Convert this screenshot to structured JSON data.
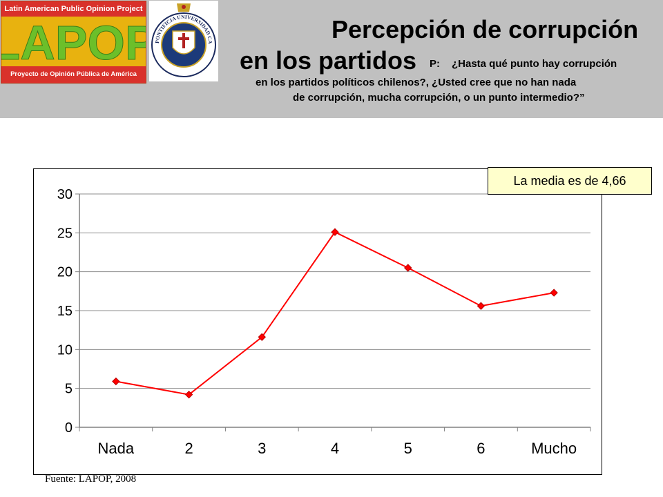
{
  "header": {
    "lapop_logo": {
      "top_text": "Latin American Public Opinion Project",
      "letters": "LAPOP",
      "bottom_text": "Proyecto de Opinión Pública de América Latina"
    },
    "seal_text": "PONTIFICIA UNIVERSIDAD CATOLICA DE CHILE",
    "title_line1": "Percepción de corrupción",
    "title_line2": "en los partidos",
    "question_prefix": "P:",
    "question_line1": "¿Hasta qué punto hay corrupción",
    "question_line2": "en los partidos políticos chilenos?, ¿Usted cree que no han nada",
    "question_line3": "de corrupción, mucha corrupción, o un punto intermedio?”"
  },
  "annotation": "La media es de 4,66",
  "source": "Fuente: LAPOP, 2008",
  "colors": {
    "header_bg": "#c0c0c0",
    "series": "#ff0000",
    "annotation_bg": "#ffffcc",
    "logo_red": "#d9312b",
    "logo_yellow": "#e8b20f",
    "logo_green": "#6cbf2a"
  },
  "chart_data": {
    "type": "line",
    "categories": [
      "Nada",
      "2",
      "3",
      "4",
      "5",
      "6",
      "Mucho"
    ],
    "series": [
      {
        "values": [
          5.9,
          4.2,
          11.6,
          25.1,
          20.5,
          15.6,
          17.3
        ]
      }
    ],
    "ylim": [
      0,
      30
    ],
    "yticks": [
      "0",
      "5",
      "10",
      "15",
      "20",
      "25",
      "30"
    ],
    "grid": true,
    "legend": false
  }
}
